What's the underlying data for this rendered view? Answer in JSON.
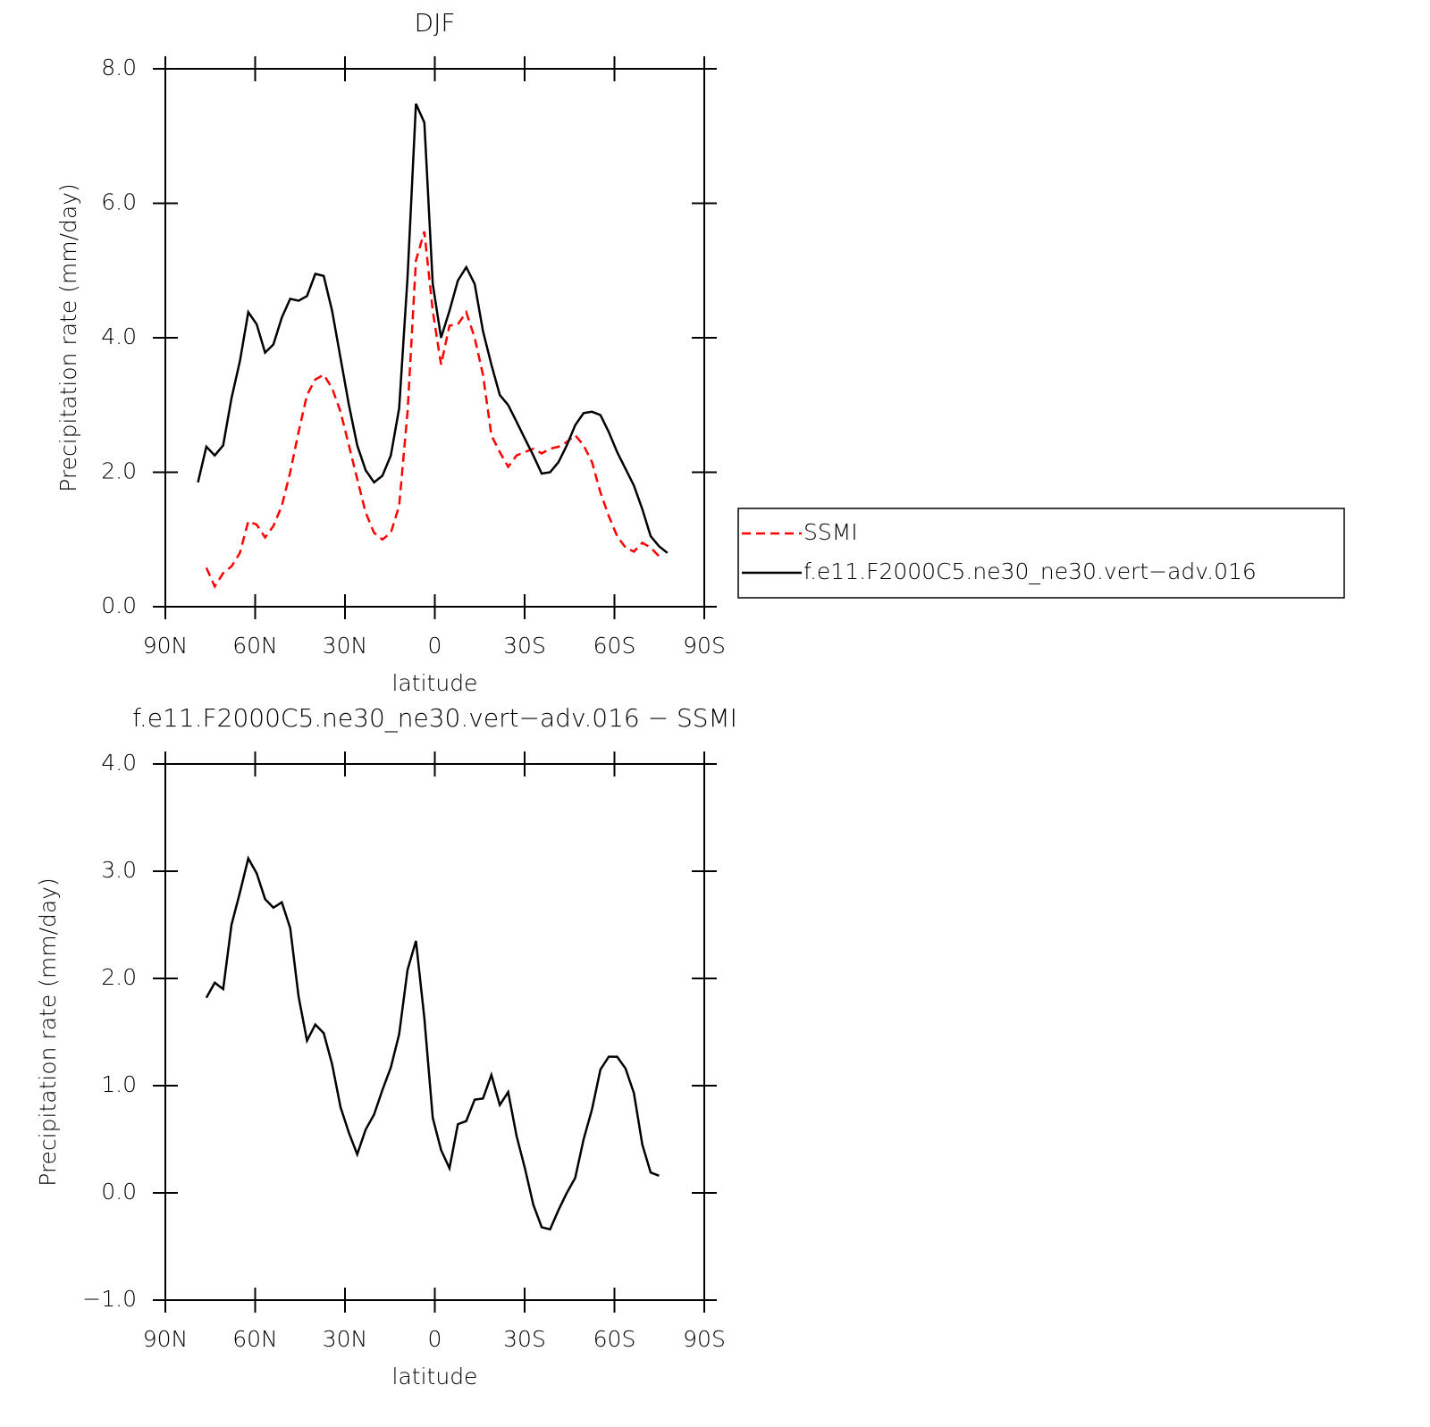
{
  "chart_data": [
    {
      "type": "line",
      "title": "DJF",
      "xlabel": "latitude",
      "ylabel": "Precipitation rate (mm/day)",
      "x": [
        79.1,
        76.3,
        73.5,
        70.7,
        67.9,
        65.1,
        62.3,
        59.5,
        56.7,
        53.9,
        51.1,
        48.3,
        45.5,
        42.7,
        39.9,
        37.1,
        34.3,
        31.5,
        28.7,
        25.9,
        23.1,
        20.3,
        17.5,
        14.7,
        11.9,
        9.1,
        6.3,
        3.5,
        0.7,
        -2.1,
        -4.9,
        -7.7,
        -10.5,
        -13.3,
        -16.1,
        -18.9,
        -21.7,
        -24.5,
        -27.3,
        -30.1,
        -32.9,
        -35.7,
        -38.5,
        -41.3,
        -44.1,
        -46.9,
        -49.7,
        -52.5,
        -55.3,
        -58.1,
        -60.9,
        -63.7,
        -66.5,
        -69.3,
        -72.1,
        -74.9,
        -77.7
      ],
      "xlim": [
        90,
        -90
      ],
      "xticks": [
        {
          "value": 90,
          "label": "90N"
        },
        {
          "value": 60,
          "label": "60N"
        },
        {
          "value": 30,
          "label": "30N"
        },
        0,
        {
          "value": -30,
          "label": "30S"
        },
        {
          "value": -60,
          "label": "60S"
        },
        {
          "value": -90,
          "label": "90S"
        }
      ],
      "ylim": [
        0,
        8
      ],
      "yticks": [
        {
          "value": 0,
          "label": "0.0"
        },
        {
          "value": 2,
          "label": "2.0"
        },
        {
          "value": 4,
          "label": "4.0"
        },
        {
          "value": 6,
          "label": "6.0"
        },
        {
          "value": 8,
          "label": "8.0"
        }
      ],
      "legend": "right",
      "series": [
        {
          "name": "SSMI",
          "color": "#ff0000",
          "style": "dashed",
          "values": [
            null,
            0.58,
            0.3,
            0.5,
            0.6,
            0.8,
            1.27,
            1.22,
            1.03,
            1.2,
            1.5,
            2.0,
            2.6,
            3.15,
            3.38,
            3.45,
            3.25,
            2.9,
            2.4,
            1.9,
            1.4,
            1.1,
            1.0,
            1.1,
            1.5,
            2.9,
            5.15,
            5.58,
            4.4,
            3.6,
            4.18,
            4.2,
            4.38,
            4.0,
            3.45,
            2.55,
            2.3,
            2.08,
            2.25,
            2.3,
            2.35,
            2.28,
            2.35,
            2.38,
            2.45,
            2.55,
            2.4,
            2.15,
            1.7,
            1.35,
            1.05,
            0.88,
            0.82,
            0.95,
            0.88,
            0.75,
            null
          ]
        },
        {
          "name": "f.e11.F2000C5.ne30_ne30.vert−adv.016",
          "color": "#000000",
          "style": "solid",
          "values": [
            1.85,
            2.38,
            2.25,
            2.4,
            3.1,
            3.65,
            4.38,
            4.2,
            3.78,
            3.9,
            4.3,
            4.58,
            4.55,
            4.62,
            4.95,
            4.92,
            4.4,
            3.7,
            3.0,
            2.4,
            2.03,
            1.85,
            1.95,
            2.25,
            2.95,
            4.9,
            7.48,
            7.2,
            4.8,
            4.0,
            4.4,
            4.85,
            5.05,
            4.8,
            4.1,
            3.6,
            3.15,
            3.0,
            2.75,
            2.5,
            2.25,
            1.98,
            2.0,
            2.15,
            2.4,
            2.7,
            2.88,
            2.9,
            2.85,
            2.6,
            2.3,
            2.05,
            1.8,
            1.45,
            1.05,
            0.9,
            0.8
          ]
        }
      ]
    },
    {
      "type": "line",
      "title": "f.e11.F2000C5.ne30_ne30.vert−adv.016 − SSMI",
      "xlabel": "latitude",
      "ylabel": "Precipitation rate (mm/day)",
      "x": [
        79.1,
        76.3,
        73.5,
        70.7,
        67.9,
        65.1,
        62.3,
        59.5,
        56.7,
        53.9,
        51.1,
        48.3,
        45.5,
        42.7,
        39.9,
        37.1,
        34.3,
        31.5,
        28.7,
        25.9,
        23.1,
        20.3,
        17.5,
        14.7,
        11.9,
        9.1,
        6.3,
        3.5,
        0.7,
        -2.1,
        -4.9,
        -7.7,
        -10.5,
        -13.3,
        -16.1,
        -18.9,
        -21.7,
        -24.5,
        -27.3,
        -30.1,
        -32.9,
        -35.7,
        -38.5,
        -41.3,
        -44.1,
        -46.9,
        -49.7,
        -52.5,
        -55.3,
        -58.1,
        -60.9,
        -63.7,
        -66.5,
        -69.3,
        -72.1,
        -74.9,
        -77.7
      ],
      "xlim": [
        90,
        -90
      ],
      "xticks": [
        {
          "value": 90,
          "label": "90N"
        },
        {
          "value": 60,
          "label": "60N"
        },
        {
          "value": 30,
          "label": "30N"
        },
        0,
        {
          "value": -30,
          "label": "30S"
        },
        {
          "value": -60,
          "label": "60S"
        },
        {
          "value": -90,
          "label": "90S"
        }
      ],
      "ylim": [
        -1,
        4
      ],
      "yticks": [
        {
          "value": -1,
          "label": "−1.0"
        },
        {
          "value": 0,
          "label": "0.0"
        },
        {
          "value": 1,
          "label": "1.0"
        },
        {
          "value": 2,
          "label": "2.0"
        },
        {
          "value": 3,
          "label": "3.0"
        },
        {
          "value": 4,
          "label": "4.0"
        }
      ],
      "series": [
        {
          "color": "#000000",
          "style": "solid",
          "values": [
            null,
            1.82,
            1.96,
            1.9,
            2.5,
            2.8,
            3.12,
            2.98,
            2.74,
            2.66,
            2.71,
            2.47,
            1.83,
            1.42,
            1.57,
            1.49,
            1.2,
            0.8,
            0.56,
            0.36,
            0.59,
            0.73,
            0.96,
            1.17,
            1.48,
            2.08,
            2.35,
            1.63,
            0.7,
            0.4,
            0.23,
            0.64,
            0.67,
            0.87,
            0.88,
            1.1,
            0.82,
            0.94,
            0.53,
            0.23,
            -0.11,
            -0.32,
            -0.34,
            -0.16,
            0.0,
            0.14,
            0.5,
            0.78,
            1.15,
            1.27,
            1.27,
            1.16,
            0.93,
            0.45,
            0.19,
            0.16,
            null
          ]
        }
      ]
    }
  ]
}
